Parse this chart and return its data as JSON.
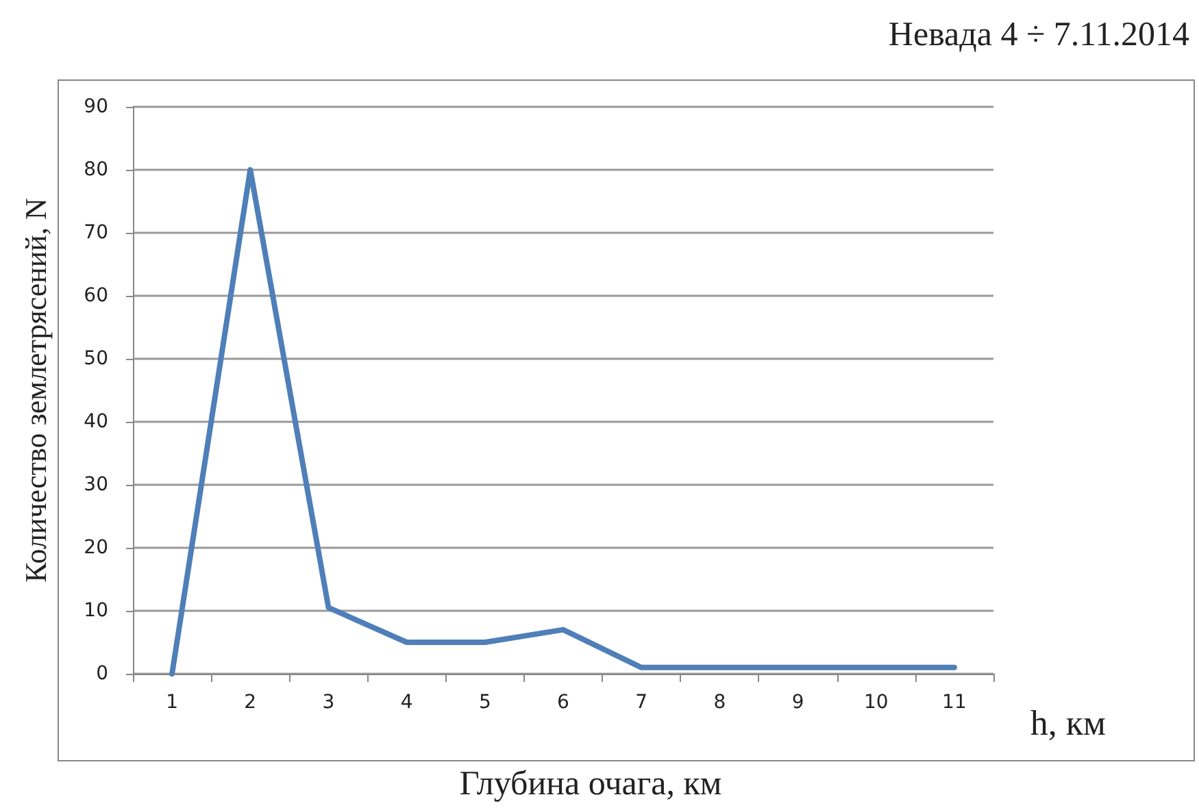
{
  "chart_data": {
    "type": "line",
    "title": "Невада 4 ÷ 7.11.2014",
    "xlabel": "Глубина очага, км",
    "ylabel": "Количество землетрясений, N",
    "annotations": [
      "h, км"
    ],
    "categories": [
      "1",
      "2",
      "3",
      "4",
      "5",
      "6",
      "7",
      "8",
      "9",
      "10",
      "11"
    ],
    "series": [
      {
        "color": "#4f7fb8",
        "values": [
          0,
          80,
          10.5,
          5,
          5,
          7,
          1,
          1,
          1,
          1,
          1
        ]
      }
    ],
    "ylim": [
      0,
      90
    ],
    "yticks": [
      0,
      10,
      20,
      30,
      40,
      50,
      60,
      70,
      80,
      90
    ],
    "grid": "y",
    "marker": "none",
    "line_style": "solid"
  }
}
